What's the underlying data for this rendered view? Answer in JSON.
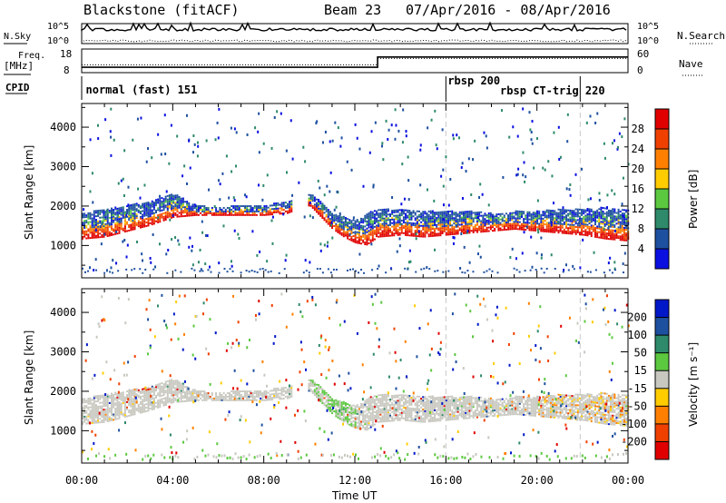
{
  "header": {
    "station": "Blackstone (fitACF)",
    "beam": "Beam 23",
    "date_range": "07/Apr/2016 - 08/Apr/2016"
  },
  "strip_labels": {
    "nsky": "N.Sky",
    "nsearch": "N.Search",
    "freq": "Freq.",
    "freq_unit": "[MHz]",
    "nave": "Nave",
    "cpid": "CPID"
  },
  "strip_ticks": {
    "noise_top": "10^5",
    "noise_bottom": "10^0",
    "freq_top": "18",
    "freq_bottom": "8",
    "nave_top": "60",
    "nave_bottom": "0"
  },
  "cpid_labels": [
    {
      "text": "normal (fast) 151",
      "time": 0.1
    },
    {
      "text": "rbsp 200",
      "time": 16.0
    },
    {
      "text": "rbsp CT-trig 220",
      "time": 18.3
    }
  ],
  "cpid_markers": [
    16.0,
    21.9
  ],
  "power_colorbar": {
    "label": "Power [dB]",
    "ticks": [
      "28",
      "24",
      "20",
      "16",
      "12",
      "8",
      "4"
    ],
    "colors": [
      "#e00000",
      "#f04000",
      "#ff8000",
      "#ffcc00",
      "#5cc840",
      "#2e8a6a",
      "#1e50a0",
      "#0a10e0"
    ]
  },
  "velocity_colorbar": {
    "label": "Velocity [m s⁻¹]",
    "ticks": [
      "200",
      "100",
      "50",
      "15",
      "-15",
      "-50",
      "-100",
      "-200"
    ],
    "colors": [
      "#0018c8",
      "#1e50a0",
      "#2e8a6a",
      "#5cc840",
      "#c8c8c0",
      "#ffcc00",
      "#ff8000",
      "#f04000",
      "#e00000"
    ]
  },
  "axes": {
    "ylabel": "Slant Range [km]",
    "xlabel": "Time UT",
    "xticks": [
      "00:00",
      "04:00",
      "08:00",
      "12:00",
      "16:00",
      "20:00",
      "00:00"
    ],
    "yticks": [
      "1000",
      "2000",
      "3000",
      "4000"
    ]
  },
  "chart_data": [
    {
      "type": "heatmap",
      "title": "Power",
      "xlim": [
        0,
        24
      ],
      "ylim": [
        180,
        4600
      ],
      "echo_band": {
        "x": [
          0,
          1,
          2,
          3,
          4,
          5,
          6,
          7,
          8,
          9,
          10,
          10.5,
          11,
          11.5,
          12,
          12.5,
          13,
          14,
          15,
          16,
          17,
          18,
          19,
          20,
          21,
          22,
          23,
          24
        ],
        "lower": [
          1150,
          1200,
          1350,
          1500,
          1700,
          1750,
          1750,
          1750,
          1750,
          1800,
          2000,
          1700,
          1400,
          1200,
          1050,
          1000,
          1200,
          1250,
          1200,
          1250,
          1300,
          1350,
          1400,
          1350,
          1300,
          1250,
          1150,
          1100
        ],
        "upper": [
          1800,
          1900,
          2000,
          2100,
          2300,
          2000,
          1950,
          2000,
          2000,
          2100,
          2300,
          2100,
          1800,
          1700,
          1600,
          1800,
          1900,
          1900,
          1850,
          1850,
          1850,
          1800,
          1850,
          1850,
          1900,
          1900,
          1950,
          1900
        ]
      }
    },
    {
      "type": "heatmap",
      "title": "Velocity",
      "xlim": [
        0,
        24
      ],
      "ylim": [
        180,
        4600
      ]
    },
    {
      "type": "line",
      "title": "Freq and Nave",
      "x": [
        0,
        13,
        13,
        24
      ],
      "freq_mhz": [
        10.3,
        10.3,
        14.6,
        14.6
      ],
      "nave": [
        20,
        20,
        36,
        36
      ]
    }
  ]
}
